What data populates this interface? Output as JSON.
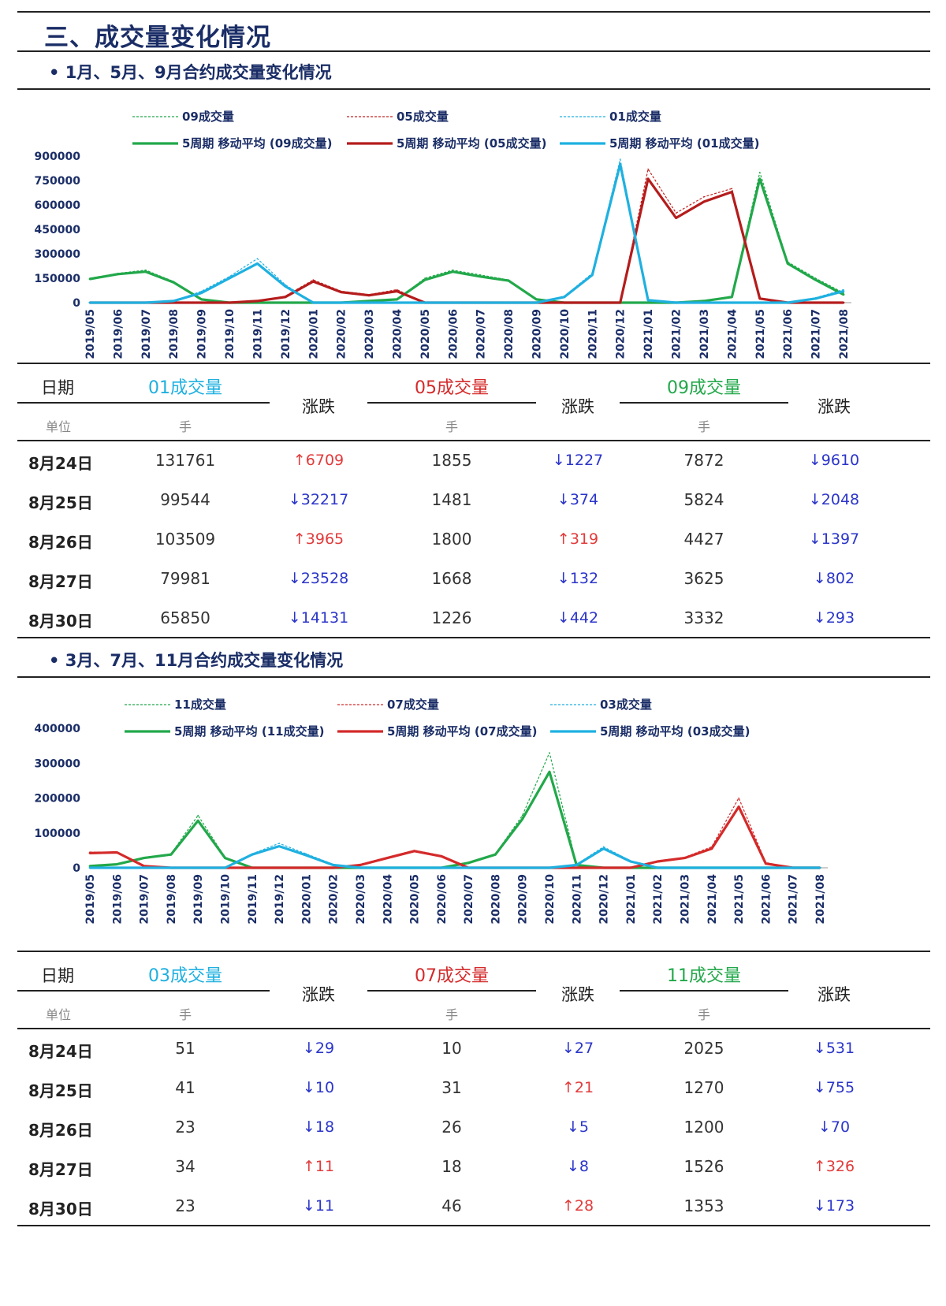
{
  "page_title": "三、成交量变化情况",
  "sections": [
    {
      "title": "• 1月、5月、9月合约成交量变化情况",
      "table": {
        "date_header": "日期",
        "unit_label": "单位",
        "change_header": "涨跌",
        "groups": [
          {
            "name": "01成交量",
            "unit": "手",
            "color": "#1fb0e0"
          },
          {
            "name": "05成交量",
            "unit": "手",
            "color": "#d42a2a"
          },
          {
            "name": "09成交量",
            "unit": "手",
            "color": "#22a84a"
          }
        ],
        "rows": [
          {
            "date": "8月24日",
            "cells": [
              {
                "value": "131761",
                "dir": "up",
                "change": "6709"
              },
              {
                "value": "1855",
                "dir": "down",
                "change": "1227"
              },
              {
                "value": "7872",
                "dir": "down",
                "change": "9610"
              }
            ]
          },
          {
            "date": "8月25日",
            "cells": [
              {
                "value": "99544",
                "dir": "down",
                "change": "32217"
              },
              {
                "value": "1481",
                "dir": "down",
                "change": "374"
              },
              {
                "value": "5824",
                "dir": "down",
                "change": "2048"
              }
            ]
          },
          {
            "date": "8月26日",
            "cells": [
              {
                "value": "103509",
                "dir": "up",
                "change": "3965"
              },
              {
                "value": "1800",
                "dir": "up",
                "change": "319"
              },
              {
                "value": "4427",
                "dir": "down",
                "change": "1397"
              }
            ]
          },
          {
            "date": "8月27日",
            "cells": [
              {
                "value": "79981",
                "dir": "down",
                "change": "23528"
              },
              {
                "value": "1668",
                "dir": "down",
                "change": "132"
              },
              {
                "value": "3625",
                "dir": "down",
                "change": "802"
              }
            ]
          },
          {
            "date": "8月30日",
            "cells": [
              {
                "value": "65850",
                "dir": "down",
                "change": "14131"
              },
              {
                "value": "1226",
                "dir": "down",
                "change": "442"
              },
              {
                "value": "3332",
                "dir": "down",
                "change": "293"
              }
            ]
          }
        ]
      }
    },
    {
      "title": "• 3月、7月、11月合约成交量变化情况",
      "table": {
        "date_header": "日期",
        "unit_label": "单位",
        "change_header": "涨跌",
        "groups": [
          {
            "name": "03成交量",
            "unit": "手",
            "color": "#1fb0e0"
          },
          {
            "name": "07成交量",
            "unit": "手",
            "color": "#d42a2a"
          },
          {
            "name": "11成交量",
            "unit": "手",
            "color": "#22a84a"
          }
        ],
        "rows": [
          {
            "date": "8月24日",
            "cells": [
              {
                "value": "51",
                "dir": "down",
                "change": "29"
              },
              {
                "value": "10",
                "dir": "down",
                "change": "27"
              },
              {
                "value": "2025",
                "dir": "down",
                "change": "531"
              }
            ]
          },
          {
            "date": "8月25日",
            "cells": [
              {
                "value": "41",
                "dir": "down",
                "change": "10"
              },
              {
                "value": "31",
                "dir": "up",
                "change": "21"
              },
              {
                "value": "1270",
                "dir": "down",
                "change": "755"
              }
            ]
          },
          {
            "date": "8月26日",
            "cells": [
              {
                "value": "23",
                "dir": "down",
                "change": "18"
              },
              {
                "value": "26",
                "dir": "down",
                "change": "5"
              },
              {
                "value": "1200",
                "dir": "down",
                "change": "70"
              }
            ]
          },
          {
            "date": "8月27日",
            "cells": [
              {
                "value": "34",
                "dir": "up",
                "change": "11"
              },
              {
                "value": "18",
                "dir": "down",
                "change": "8"
              },
              {
                "value": "1526",
                "dir": "up",
                "change": "326"
              }
            ]
          },
          {
            "date": "8月30日",
            "cells": [
              {
                "value": "23",
                "dir": "down",
                "change": "11"
              },
              {
                "value": "46",
                "dir": "up",
                "change": "28"
              },
              {
                "value": "1353",
                "dir": "down",
                "change": "173"
              }
            ]
          }
        ]
      }
    }
  ],
  "chart_data": [
    {
      "type": "line",
      "x": [
        "2019/05",
        "2019/06",
        "2019/07",
        "2019/08",
        "2019/09",
        "2019/10",
        "2019/11",
        "2019/12",
        "2020/01",
        "2020/02",
        "2020/03",
        "2020/04",
        "2020/05",
        "2020/06",
        "2020/07",
        "2020/08",
        "2020/09",
        "2020/10",
        "2020/11",
        "2020/12",
        "2021/01",
        "2021/02",
        "2021/03",
        "2021/04",
        "2021/05",
        "2021/06",
        "2021/07",
        "2021/08"
      ],
      "ylim": [
        0,
        900000
      ],
      "yticks": [
        0,
        150000,
        300000,
        450000,
        600000,
        750000,
        900000
      ],
      "ytick_labels": [
        "0",
        "150000",
        "300000",
        "450000",
        "600000",
        "750000",
        "900000"
      ],
      "legend": [
        "09成交量",
        "05成交量",
        "01成交量",
        "5周期 移动平均 (09成交量)",
        "5周期 移动平均 (05成交量)",
        "5周期 移动平均 (01成交量)"
      ],
      "series": [
        {
          "name": "09成交量",
          "color": "#22a84a",
          "style": "dashed",
          "values": [
            150000,
            180000,
            200000,
            130000,
            20000,
            0,
            0,
            0,
            0,
            0,
            10000,
            20000,
            150000,
            200000,
            170000,
            140000,
            20000,
            0,
            0,
            0,
            0,
            0,
            10000,
            40000,
            800000,
            250000,
            150000,
            60000
          ]
        },
        {
          "name": "05成交量",
          "color": "#c42222",
          "style": "dashed",
          "values": [
            0,
            0,
            0,
            0,
            0,
            0,
            10000,
            40000,
            140000,
            70000,
            50000,
            80000,
            0,
            0,
            0,
            0,
            0,
            0,
            0,
            0,
            820000,
            550000,
            650000,
            700000,
            30000,
            0,
            0,
            0
          ]
        },
        {
          "name": "01成交量",
          "color": "#1fb0e0",
          "style": "dashed",
          "values": [
            0,
            0,
            0,
            10000,
            70000,
            160000,
            270000,
            110000,
            0,
            0,
            0,
            0,
            0,
            0,
            0,
            0,
            0,
            40000,
            180000,
            880000,
            20000,
            0,
            0,
            0,
            0,
            0,
            30000,
            80000
          ]
        },
        {
          "name": "5周期 移动平均 (09成交量)",
          "color": "#22a84a",
          "style": "solid",
          "values": [
            145000,
            175000,
            190000,
            125000,
            20000,
            0,
            0,
            0,
            0,
            0,
            10000,
            20000,
            140000,
            190000,
            160000,
            135000,
            20000,
            0,
            0,
            0,
            0,
            0,
            10000,
            35000,
            760000,
            240000,
            140000,
            50000
          ]
        },
        {
          "name": "5周期 移动平均 (05成交量)",
          "color": "#b51c1c",
          "style": "solid",
          "values": [
            0,
            0,
            0,
            0,
            0,
            0,
            10000,
            35000,
            130000,
            65000,
            45000,
            70000,
            0,
            0,
            0,
            0,
            0,
            0,
            0,
            0,
            760000,
            520000,
            620000,
            680000,
            25000,
            0,
            0,
            0
          ]
        },
        {
          "name": "5周期 移动平均 (01成交量)",
          "color": "#1fb0e0",
          "style": "solid",
          "values": [
            0,
            0,
            0,
            10000,
            60000,
            150000,
            240000,
            100000,
            0,
            0,
            0,
            0,
            0,
            0,
            0,
            0,
            0,
            35000,
            170000,
            850000,
            15000,
            0,
            0,
            0,
            0,
            0,
            25000,
            70000
          ]
        }
      ]
    },
    {
      "type": "line",
      "x": [
        "2019/05",
        "2019/06",
        "2019/07",
        "2019/08",
        "2019/09",
        "2019/10",
        "2019/11",
        "2019/12",
        "2020/01",
        "2020/02",
        "2020/03",
        "2020/04",
        "2020/05",
        "2020/06",
        "2020/07",
        "2020/08",
        "2020/09",
        "2020/10",
        "2020/11",
        "2020/12",
        "2021/01",
        "2021/02",
        "2021/03",
        "2021/04",
        "2021/05",
        "2021/06",
        "2021/07",
        "2021/08"
      ],
      "ylim": [
        0,
        400000
      ],
      "yticks": [
        0,
        100000,
        200000,
        300000,
        400000
      ],
      "ytick_labels": [
        "0",
        "100000",
        "200000",
        "300000",
        "400000"
      ],
      "legend": [
        "11成交量",
        "07成交量",
        "03成交量",
        "5周期 移动平均 (11成交量)",
        "5周期 移动平均 (07成交量)",
        "5周期 移动平均 (03成交量)"
      ],
      "series": [
        {
          "name": "11成交量",
          "color": "#22a84a",
          "style": "dashed",
          "values": [
            5000,
            10000,
            30000,
            40000,
            150000,
            30000,
            0,
            0,
            0,
            0,
            0,
            0,
            0,
            0,
            15000,
            40000,
            150000,
            330000,
            10000,
            0,
            0,
            0,
            0,
            0,
            0,
            0,
            0,
            0
          ]
        },
        {
          "name": "07成交量",
          "color": "#d42a2a",
          "style": "dashed",
          "values": [
            45000,
            45000,
            5000,
            0,
            0,
            0,
            0,
            0,
            0,
            0,
            10000,
            30000,
            50000,
            35000,
            0,
            0,
            0,
            0,
            0,
            0,
            0,
            20000,
            30000,
            60000,
            200000,
            15000,
            0,
            0
          ]
        },
        {
          "name": "03成交量",
          "color": "#1fb0e0",
          "style": "dashed",
          "values": [
            0,
            0,
            0,
            0,
            0,
            0,
            40000,
            70000,
            40000,
            10000,
            0,
            0,
            0,
            0,
            0,
            0,
            0,
            0,
            10000,
            60000,
            20000,
            0,
            0,
            0,
            0,
            0,
            0,
            0
          ]
        },
        {
          "name": "5周期 移动平均 (11成交量)",
          "color": "#22a84a",
          "style": "solid",
          "values": [
            5000,
            10000,
            28000,
            38000,
            135000,
            28000,
            0,
            0,
            0,
            0,
            0,
            0,
            0,
            0,
            14000,
            38000,
            140000,
            275000,
            8000,
            0,
            0,
            0,
            0,
            0,
            0,
            0,
            0,
            0
          ]
        },
        {
          "name": "5周期 移动平均 (07成交量)",
          "color": "#d42a2a",
          "style": "solid",
          "values": [
            42000,
            44000,
            5000,
            0,
            0,
            0,
            0,
            0,
            0,
            0,
            8000,
            28000,
            48000,
            33000,
            0,
            0,
            0,
            0,
            0,
            0,
            0,
            18000,
            28000,
            55000,
            175000,
            12000,
            0,
            0
          ]
        },
        {
          "name": "5周期 移动平均 (03成交量)",
          "color": "#1fb0e0",
          "style": "solid",
          "values": [
            0,
            0,
            0,
            0,
            0,
            0,
            38000,
            62000,
            36000,
            8000,
            0,
            0,
            0,
            0,
            0,
            0,
            0,
            0,
            8000,
            55000,
            18000,
            0,
            0,
            0,
            0,
            0,
            0,
            0
          ]
        }
      ]
    }
  ]
}
